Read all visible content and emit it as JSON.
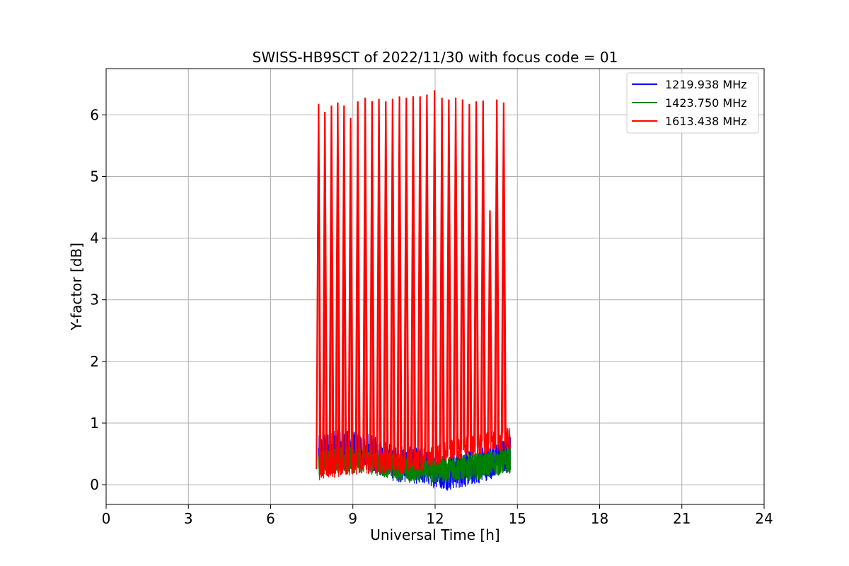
{
  "chart_data": {
    "type": "line",
    "title": "SWISS-HB9SCT of 2022/11/30 with focus code = 01",
    "xlabel": "Universal Time [h]",
    "ylabel": "Y-factor [dB]",
    "xlim": [
      0,
      24
    ],
    "ylim": [
      -0.32,
      6.75
    ],
    "xticks": [
      0,
      3,
      6,
      9,
      12,
      15,
      18,
      21,
      24
    ],
    "yticks": [
      0,
      1,
      2,
      3,
      4,
      5,
      6
    ],
    "grid": true,
    "legend_position": "top-right",
    "series": [
      {
        "name": "1219.938 MHz",
        "color": "#0000ff",
        "x_range": [
          7.75,
          14.75
        ],
        "baseline": [
          [
            7.75,
            0.5
          ],
          [
            8.5,
            0.6
          ],
          [
            9.5,
            0.55
          ],
          [
            10.5,
            0.35
          ],
          [
            11.5,
            0.3
          ],
          [
            12.5,
            0.2
          ],
          [
            13.5,
            0.3
          ],
          [
            14.75,
            0.5
          ]
        ],
        "noise_amplitude": 0.3,
        "spikes": []
      },
      {
        "name": "1423.750 MHz",
        "color": "#008000",
        "x_range": [
          7.75,
          14.75
        ],
        "baseline": [
          [
            7.75,
            0.35
          ],
          [
            8.5,
            0.4
          ],
          [
            9.5,
            0.4
          ],
          [
            10.5,
            0.3
          ],
          [
            11.5,
            0.25
          ],
          [
            12.5,
            0.25
          ],
          [
            13.5,
            0.3
          ],
          [
            14.75,
            0.4
          ]
        ],
        "noise_amplitude": 0.22,
        "spikes": []
      },
      {
        "name": "1613.438 MHz",
        "color": "#ff0000",
        "x_range": [
          7.75,
          14.75
        ],
        "baseline": [
          [
            7.75,
            0.25
          ],
          [
            8.5,
            0.3
          ],
          [
            9.5,
            0.35
          ],
          [
            10.5,
            0.35
          ],
          [
            11.5,
            0.4
          ],
          [
            12.5,
            0.55
          ],
          [
            13.5,
            0.65
          ],
          [
            14.75,
            0.75
          ]
        ],
        "noise_amplitude": 0.18,
        "spikes": [
          [
            7.75,
            6.18
          ],
          [
            7.98,
            6.05
          ],
          [
            8.22,
            6.15
          ],
          [
            8.45,
            6.2
          ],
          [
            8.68,
            6.15
          ],
          [
            8.92,
            5.95
          ],
          [
            9.18,
            6.22
          ],
          [
            9.45,
            6.28
          ],
          [
            9.7,
            6.22
          ],
          [
            9.95,
            6.26
          ],
          [
            10.2,
            6.22
          ],
          [
            10.45,
            6.26
          ],
          [
            10.7,
            6.3
          ],
          [
            10.95,
            6.28
          ],
          [
            11.2,
            6.3
          ],
          [
            11.45,
            6.3
          ],
          [
            11.7,
            6.33
          ],
          [
            11.98,
            6.4
          ],
          [
            12.25,
            6.28
          ],
          [
            12.5,
            6.25
          ],
          [
            12.75,
            6.28
          ],
          [
            13.0,
            6.25
          ],
          [
            13.25,
            6.18
          ],
          [
            13.5,
            6.22
          ],
          [
            13.75,
            6.23
          ],
          [
            14.0,
            4.45
          ],
          [
            14.25,
            6.25
          ],
          [
            14.5,
            6.2
          ]
        ]
      }
    ]
  }
}
